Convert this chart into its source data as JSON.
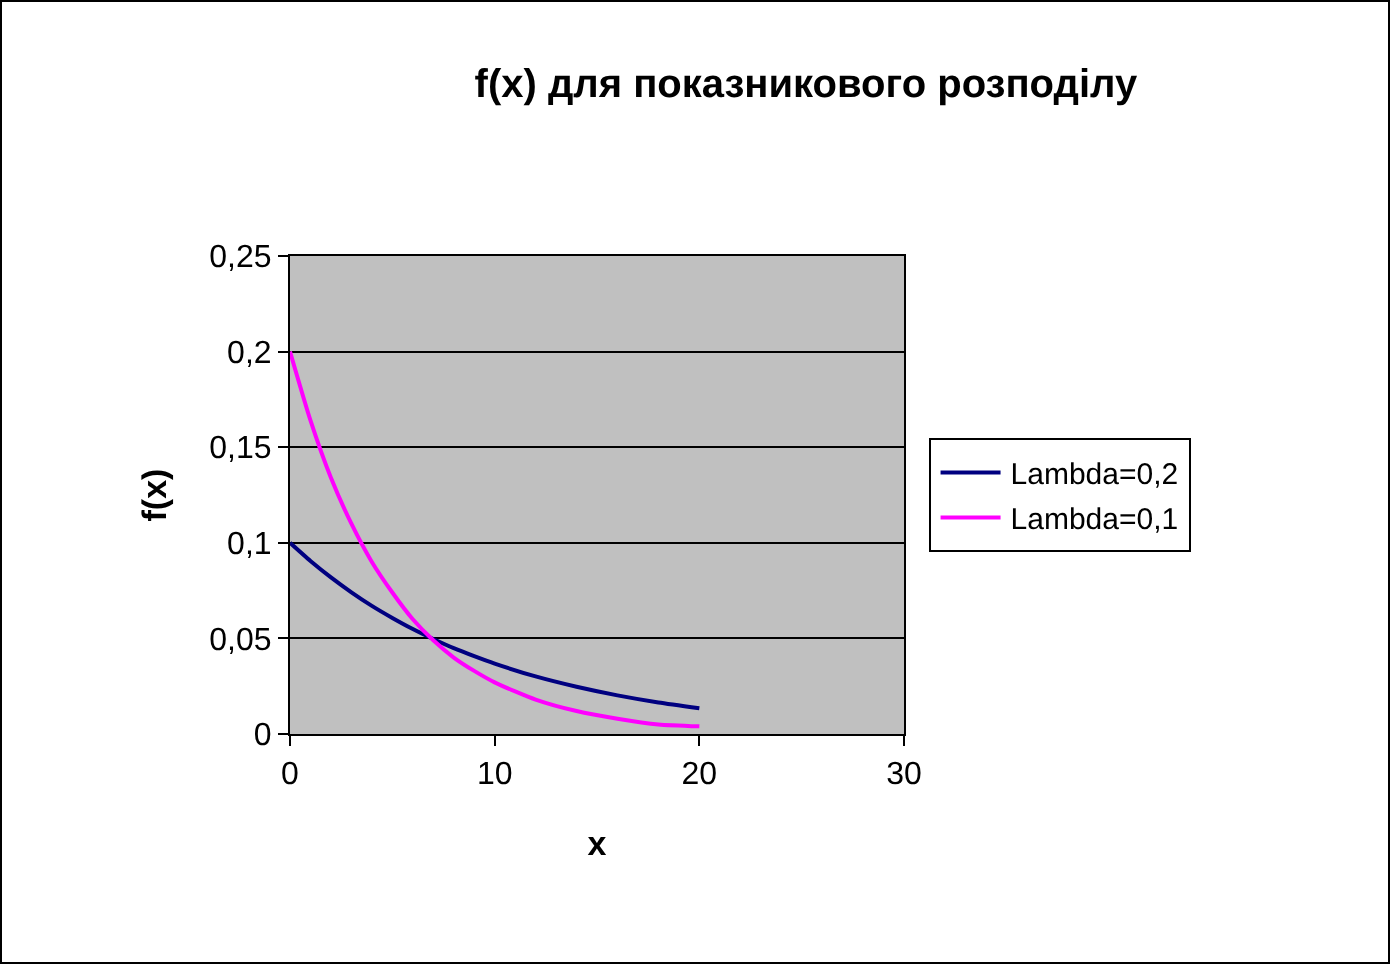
{
  "chart_data": {
    "type": "line",
    "title": "f(x) для показникового розподілу",
    "xlabel": "x",
    "ylabel": "f(x)",
    "series": [
      {
        "name": "Lambda=0,2",
        "color": "#000080",
        "x": [
          0,
          1,
          2,
          3,
          4,
          5,
          6,
          7,
          8,
          9,
          10,
          12,
          14,
          16,
          18,
          20
        ],
        "values": [
          0.1,
          0.0905,
          0.0819,
          0.0741,
          0.067,
          0.0607,
          0.0549,
          0.0497,
          0.0449,
          0.0407,
          0.0368,
          0.0301,
          0.0247,
          0.0202,
          0.0165,
          0.0135
        ]
      },
      {
        "name": "Lambda=0,1",
        "color": "#ff00ff",
        "x": [
          0,
          1,
          2,
          3,
          4,
          5,
          6,
          7,
          8,
          9,
          10,
          12,
          14,
          16,
          18,
          20
        ],
        "values": [
          0.2,
          0.164,
          0.134,
          0.11,
          0.09,
          0.074,
          0.06,
          0.049,
          0.04,
          0.033,
          0.027,
          0.018,
          0.012,
          0.008,
          0.005,
          0.004
        ]
      }
    ],
    "xlim": [
      0,
      30
    ],
    "xticks": [
      0,
      10,
      20,
      30
    ],
    "ylim": [
      0,
      0.25
    ],
    "yticks": [
      0,
      {
        "value": 0.05,
        "label": "0,05"
      },
      {
        "value": 0.1,
        "label": "0,1"
      },
      {
        "value": 0.15,
        "label": "0,15"
      },
      {
        "value": 0.2,
        "label": "0,2"
      },
      {
        "value": 0.25,
        "label": "0,25"
      }
    ],
    "grid": "y",
    "legend": "right",
    "marker": "none",
    "line_style": "solid"
  }
}
